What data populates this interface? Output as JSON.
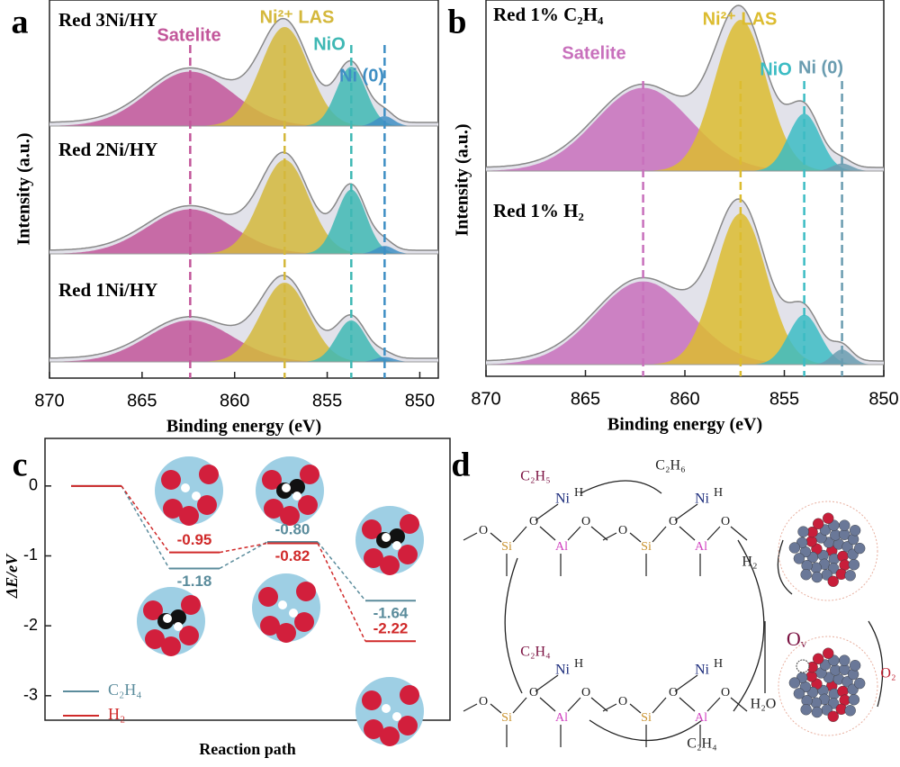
{
  "chart_data": [
    {
      "type": "xps",
      "panel": "a",
      "xlabel": "Binding energy (eV)",
      "ylabel": "Intensity (a.u.)",
      "xlim": [
        870,
        849
      ],
      "xticks": [
        870,
        865,
        860,
        855,
        850
      ],
      "peaks": [
        {
          "name": "Satelite",
          "position": 862.4,
          "color": "#c2569a"
        },
        {
          "name": "Ni²⁺ LAS",
          "position": 857.3,
          "color": "#d4b83c"
        },
        {
          "name": "NiO",
          "position": 853.7,
          "color": "#3fb8b4"
        },
        {
          "name": "Ni (0)",
          "position": 851.9,
          "color": "#3f8fc4"
        }
      ],
      "spectra": [
        {
          "name": "Red 3Ni/HY",
          "components": [
            {
              "height": 0.55,
              "width": 2.3
            },
            {
              "height": 1.0,
              "width": 1.3
            },
            {
              "height": 0.6,
              "width": 0.8
            },
            {
              "height": 0.1,
              "width": 0.5
            }
          ]
        },
        {
          "name": "Red 2Ni/HY",
          "components": [
            {
              "height": 0.45,
              "width": 2.3
            },
            {
              "height": 0.95,
              "width": 1.3
            },
            {
              "height": 0.65,
              "width": 0.8
            },
            {
              "height": 0.08,
              "width": 0.5
            }
          ]
        },
        {
          "name": "Red 1Ni/HY",
          "components": [
            {
              "height": 0.42,
              "width": 2.3
            },
            {
              "height": 0.8,
              "width": 1.3
            },
            {
              "height": 0.42,
              "width": 0.8
            },
            {
              "height": 0.05,
              "width": 0.5
            }
          ]
        }
      ]
    },
    {
      "type": "xps",
      "panel": "b",
      "xlabel": "Binding energy (eV)",
      "ylabel": "Intensity (a.u.)",
      "xlim": [
        870,
        850
      ],
      "xticks": [
        870,
        865,
        860,
        855,
        850
      ],
      "peaks": [
        {
          "name": "Satelite",
          "position": 862.1,
          "color": "#c870bc"
        },
        {
          "name": "Ni²⁺ LAS",
          "position": 857.2,
          "color": "#dcbc30"
        },
        {
          "name": "NiO",
          "position": 854.0,
          "color": "#3cbcc4"
        },
        {
          "name": "Ni (0)",
          "position": 852.1,
          "color": "#6a9cb0"
        }
      ],
      "spectra": [
        {
          "name": "Red 1% C₂H₄",
          "components": [
            {
              "height": 0.55,
              "width": 2.4
            },
            {
              "height": 1.0,
              "width": 1.3
            },
            {
              "height": 0.38,
              "width": 0.8
            },
            {
              "height": 0.05,
              "width": 0.5
            }
          ]
        },
        {
          "name": "Red 1% H₂",
          "components": [
            {
              "height": 0.55,
              "width": 2.4
            },
            {
              "height": 1.0,
              "width": 1.3
            },
            {
              "height": 0.33,
              "width": 0.8
            },
            {
              "height": 0.1,
              "width": 0.5
            }
          ]
        }
      ]
    },
    {
      "type": "energy",
      "panel": "c",
      "xlabel": "Reaction path",
      "ylabel": "ΔE/eV",
      "ylim": [
        -3.35,
        0.68
      ],
      "yticks": [
        0,
        -1,
        -2,
        -3
      ],
      "series": [
        {
          "name": "C₂H₄",
          "color": "#5b8c9c",
          "values": [
            0,
            -1.18,
            -0.8,
            -1.64
          ],
          "value_labels": [
            null,
            "-1.18",
            "-0.80",
            "-1.64"
          ]
        },
        {
          "name": "H₂",
          "color": "#d02a2a",
          "values": [
            0,
            -0.95,
            -0.82,
            -2.22
          ],
          "value_labels": [
            null,
            "-0.95",
            "-0.82",
            "-2.22"
          ]
        }
      ]
    }
  ],
  "diagram": {
    "panel": "d",
    "atoms": [
      "Si",
      "Al",
      "Ni",
      "O",
      "H"
    ],
    "labels": [
      "C₂H₅",
      "C₂H₆",
      "H₂",
      "H₂O",
      "O₂",
      "Oᵥ",
      "C₂H₄",
      "C₂H₄"
    ]
  }
}
